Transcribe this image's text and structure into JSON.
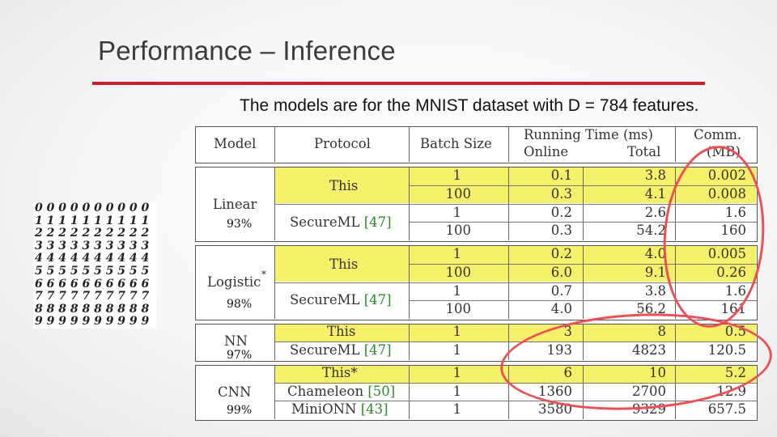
{
  "slide": {
    "title": "Performance – Inference",
    "caption": "The models are for the MNIST dataset with D = 784 features."
  },
  "digit_image": {
    "rows": [
      "0 0 0 0 0 0 0 0 0 0",
      "1 1 1 1 1 1 1 1 1 1",
      "2 2 2 2 2 2 2 2 2 2",
      "3 3 3 3 3 3 3 3 3 3",
      "4 4 4 4 4 4 4 4 4 4",
      "5 5 5 5 5 5 5 5 5 5",
      "6 6 6 6 6 6 6 6 6 6",
      "7 7 7 7 7 7 7 7 7 7",
      "8 8 8 8 8 8 8 8 8 8",
      "9 9 9 9 9 9 9 9 9 9"
    ]
  },
  "table": {
    "headers": {
      "model": "Model",
      "protocol": "Protocol",
      "batch": "Batch Size",
      "running_time": "Running Time (ms)",
      "online": "Online",
      "total": "Total",
      "comm": "Comm.",
      "comm_unit": "(MB)"
    },
    "linear": {
      "model": "Linear",
      "accuracy": "93%",
      "this": "This",
      "secureml": "SecureML",
      "secureml_ref": "[47]",
      "rows": [
        {
          "batch": "1",
          "online": "0.1",
          "total": "3.8",
          "comm": "0.002"
        },
        {
          "batch": "100",
          "online": "0.3",
          "total": "4.1",
          "comm": "0.008"
        },
        {
          "batch": "1",
          "online": "0.2",
          "total": "2.6",
          "comm": "1.6"
        },
        {
          "batch": "100",
          "online": "0.3",
          "total": "54.2",
          "comm": "160"
        }
      ]
    },
    "logistic": {
      "model": "Logistic",
      "star": "*",
      "accuracy": "98%",
      "this": "This",
      "secureml": "SecureML",
      "secureml_ref": "[47]",
      "rows": [
        {
          "batch": "1",
          "online": "0.2",
          "total": "4.0",
          "comm": "0.005"
        },
        {
          "batch": "100",
          "online": "6.0",
          "total": "9.1",
          "comm": "0.26"
        },
        {
          "batch": "1",
          "online": "0.7",
          "total": "3.8",
          "comm": "1.6"
        },
        {
          "batch": "100",
          "online": "4.0",
          "total": "56.2",
          "comm": "161"
        }
      ]
    },
    "nn": {
      "model": "NN",
      "accuracy": "97%",
      "this": "This",
      "secureml": "SecureML",
      "secureml_ref": "[47]",
      "rows": [
        {
          "batch": "1",
          "online": "3",
          "total": "8",
          "comm": "0.5"
        },
        {
          "batch": "1",
          "online": "193",
          "total": "4823",
          "comm": "120.5"
        }
      ]
    },
    "cnn": {
      "model": "CNN",
      "accuracy": "99%",
      "this": "This*",
      "chameleon": "Chameleon",
      "chameleon_ref": "[50]",
      "minionn": "MiniONN",
      "minionn_ref": "[43]",
      "rows": [
        {
          "batch": "1",
          "online": "6",
          "total": "10",
          "comm": "5.2"
        },
        {
          "batch": "1",
          "online": "1360",
          "total": "2700",
          "comm": "12.9"
        },
        {
          "batch": "1",
          "online": "3580",
          "total": "9329",
          "comm": "657.5"
        }
      ]
    }
  },
  "colors": {
    "title_rule": "#c8202d",
    "highlight": "#f5f06a",
    "annotation_oval": "#ec4f55",
    "reference": "#2a8a2a"
  }
}
